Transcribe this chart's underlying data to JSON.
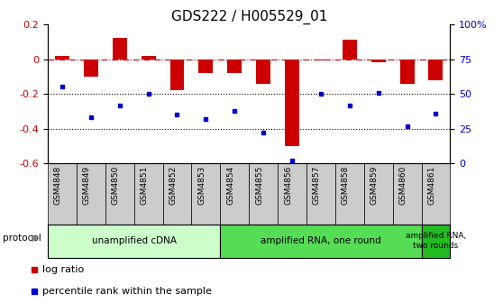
{
  "title": "GDS222 / H005529_01",
  "samples": [
    "GSM4848",
    "GSM4849",
    "GSM4850",
    "GSM4851",
    "GSM4852",
    "GSM4853",
    "GSM4854",
    "GSM4855",
    "GSM4856",
    "GSM4857",
    "GSM4858",
    "GSM4859",
    "GSM4860",
    "GSM4861"
  ],
  "log_ratio": [
    0.02,
    -0.1,
    0.12,
    0.02,
    -0.18,
    -0.08,
    -0.08,
    -0.14,
    -0.5,
    -0.01,
    0.11,
    -0.02,
    -0.14,
    -0.12
  ],
  "percentile_rank": [
    55,
    33,
    42,
    50,
    35,
    32,
    38,
    22,
    2,
    50,
    42,
    51,
    27,
    36
  ],
  "bar_color": "#cc0000",
  "dot_color": "#0000cc",
  "left_ylim": [
    -0.6,
    0.2
  ],
  "right_ylim": [
    0,
    100
  ],
  "left_yticks": [
    -0.6,
    -0.4,
    -0.2,
    0.0,
    0.2
  ],
  "left_yticklabels": [
    "-0.6",
    "-0.4",
    "-0.2",
    "0",
    "0.2"
  ],
  "right_yticks": [
    0,
    25,
    50,
    75,
    100
  ],
  "right_yticklabels": [
    "0",
    "25",
    "50",
    "75",
    "100%"
  ],
  "dotted_lines": [
    -0.2,
    -0.4
  ],
  "dashed_line_y": 0.0,
  "protocol_groups": [
    {
      "label": "unamplified cDNA",
      "start": 0,
      "end": 5,
      "color": "#ccffcc"
    },
    {
      "label": "amplified RNA, one round",
      "start": 6,
      "end": 12,
      "color": "#55dd55"
    },
    {
      "label": "amplified RNA,\ntwo rounds",
      "start": 13,
      "end": 13,
      "color": "#22bb22"
    }
  ],
  "protocol_label": "protocol",
  "legend_items": [
    {
      "label": "log ratio",
      "color": "#cc0000"
    },
    {
      "label": "percentile rank within the sample",
      "color": "#0000cc"
    }
  ],
  "sample_box_color": "#cccccc",
  "tick_label_fontsize": 6.5,
  "title_fontsize": 11,
  "bar_width": 0.5
}
